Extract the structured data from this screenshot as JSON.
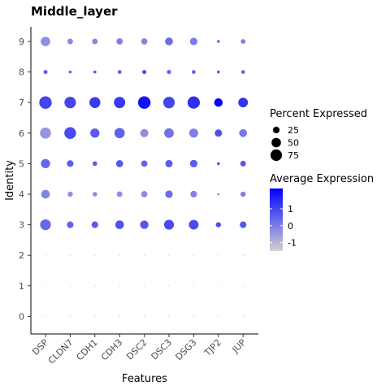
{
  "chart_data": {
    "type": "dotplot",
    "title": "Middle_layer",
    "xlabel": "Features",
    "ylabel": "Identity",
    "features": [
      "DSP",
      "CLDN7",
      "CDH1",
      "CDH3",
      "DSC2",
      "DSC3",
      "DSG3",
      "TJP2",
      "JUP"
    ],
    "identities": [
      "0",
      "1",
      "2",
      "3",
      "4",
      "5",
      "6",
      "7",
      "8",
      "9"
    ],
    "percent_expressed": {
      "9": [
        50,
        18,
        18,
        22,
        22,
        35,
        32,
        5,
        12
      ],
      "8": [
        10,
        5,
        5,
        8,
        10,
        10,
        8,
        5,
        8
      ],
      "7": [
        88,
        75,
        68,
        72,
        88,
        75,
        85,
        40,
        52
      ],
      "6": [
        68,
        78,
        48,
        60,
        38,
        52,
        45,
        30,
        35
      ],
      "5": [
        48,
        25,
        12,
        28,
        22,
        30,
        32,
        5,
        18
      ],
      "4": [
        42,
        15,
        12,
        18,
        22,
        32,
        25,
        3,
        15
      ],
      "3": [
        65,
        25,
        25,
        42,
        40,
        55,
        52,
        15,
        25
      ],
      "2": [
        0.5,
        0.5,
        0.5,
        0.5,
        0.5,
        0.5,
        0.5,
        0.5,
        0.5
      ],
      "1": [
        0.5,
        0.5,
        0.5,
        0.5,
        0.5,
        0.5,
        0.5,
        0.5,
        0.5
      ],
      "0": [
        0.5,
        0.5,
        0.5,
        0.5,
        0.5,
        0.5,
        0.5,
        0.5,
        0.5
      ]
    },
    "average_expression": {
      "9": [
        -0.3,
        -0.2,
        -0.2,
        0.0,
        -0.1,
        0.3,
        0.0,
        0.2,
        0.0
      ],
      "8": [
        0.4,
        0.5,
        0.6,
        0.6,
        0.8,
        0.5,
        0.5,
        0.6,
        0.5
      ],
      "7": [
        1.0,
        1.0,
        1.2,
        1.2,
        1.9,
        1.0,
        1.4,
        2.2,
        1.3
      ],
      "6": [
        -0.4,
        0.9,
        0.6,
        0.5,
        -0.3,
        0.2,
        0.0,
        0.8,
        0.1
      ],
      "5": [
        0.4,
        0.6,
        0.6,
        0.7,
        0.5,
        0.6,
        0.6,
        0.6,
        0.7
      ],
      "4": [
        -0.1,
        -0.3,
        -0.3,
        -0.3,
        -0.2,
        0.3,
        -0.1,
        -0.2,
        0.0
      ],
      "3": [
        0.4,
        0.5,
        0.6,
        0.8,
        0.7,
        0.9,
        0.9,
        0.8,
        0.7
      ],
      "2": [
        -1.2,
        -1.2,
        -1.2,
        -1.2,
        -1.2,
        -1.2,
        -1.2,
        -1.2,
        -1.2
      ],
      "1": [
        -1.2,
        -1.2,
        -1.2,
        -1.2,
        -1.2,
        -1.2,
        -1.2,
        -1.2,
        -1.2
      ],
      "0": [
        -1.2,
        -1.2,
        -1.2,
        -1.2,
        -1.2,
        -1.2,
        -1.2,
        -1.2,
        -1.2
      ]
    },
    "color_low": "#d3d3d3",
    "color_high": "#0000ff",
    "color_range": [
      -1.5,
      2.2
    ],
    "size_legend": {
      "title": "Percent Expressed",
      "values": [
        25,
        50,
        75
      ],
      "labels": [
        "25",
        "50",
        "75"
      ]
    },
    "color_legend": {
      "title": "Average Expression",
      "ticks": [
        1,
        0,
        -1
      ],
      "labels": [
        "1",
        "0",
        "-1"
      ]
    },
    "grid": false,
    "legend_position": "right"
  }
}
